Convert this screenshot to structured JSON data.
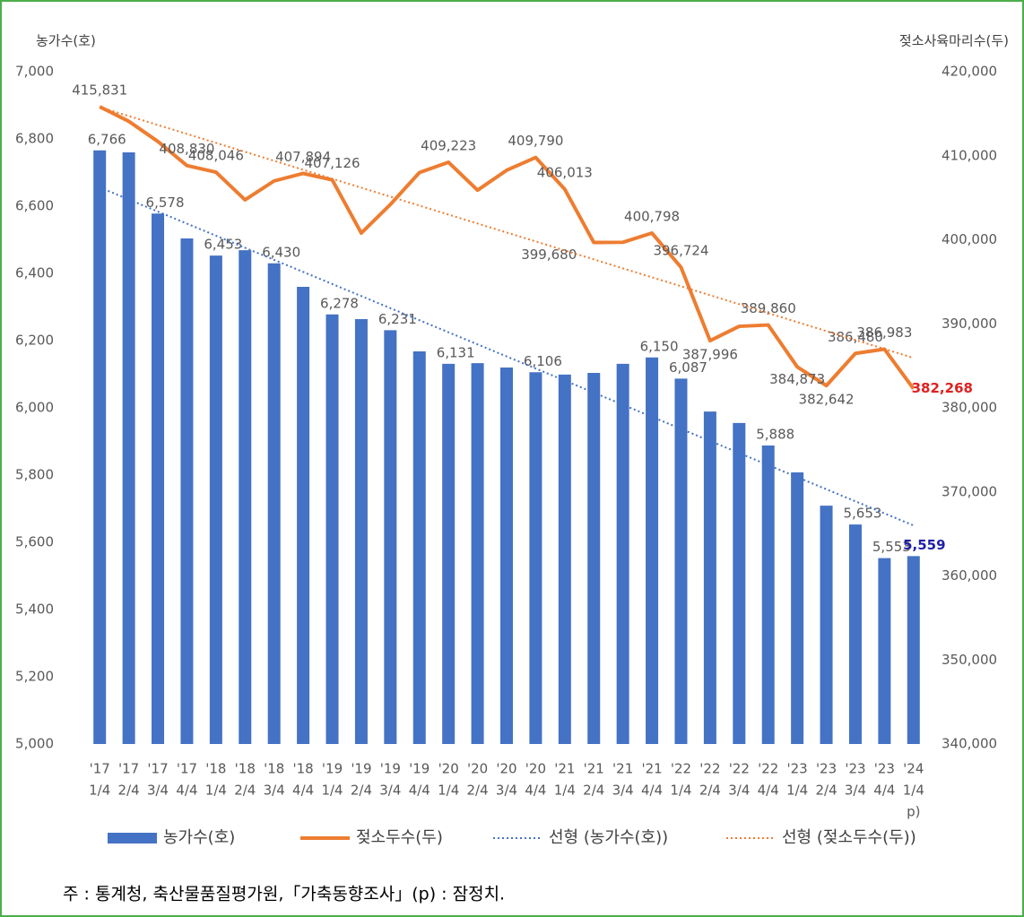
{
  "chart_data": {
    "type": "bar-line",
    "y_title": "농가수(호)",
    "y2_title": "젖소사육마리수(두)",
    "categories": [
      [
        "'17",
        "1/4"
      ],
      [
        "'17",
        "2/4"
      ],
      [
        "'17",
        "3/4"
      ],
      [
        "'17",
        "4/4"
      ],
      [
        "'18",
        "1/4"
      ],
      [
        "'18",
        "2/4"
      ],
      [
        "'18",
        "3/4"
      ],
      [
        "'18",
        "4/4"
      ],
      [
        "'19",
        "1/4"
      ],
      [
        "'19",
        "2/4"
      ],
      [
        "'19",
        "3/4"
      ],
      [
        "'19",
        "4/4"
      ],
      [
        "'20",
        "1/4"
      ],
      [
        "'20",
        "2/4"
      ],
      [
        "'20",
        "3/4"
      ],
      [
        "'20",
        "4/4"
      ],
      [
        "'21",
        "1/4"
      ],
      [
        "'21",
        "2/4"
      ],
      [
        "'21",
        "3/4"
      ],
      [
        "'21",
        "4/4"
      ],
      [
        "'22",
        "1/4"
      ],
      [
        "'22",
        "2/4"
      ],
      [
        "'22",
        "3/4"
      ],
      [
        "'22",
        "4/4"
      ],
      [
        "'23",
        "1/4"
      ],
      [
        "'23",
        "2/4"
      ],
      [
        "'23",
        "3/4"
      ],
      [
        "'23",
        "4/4"
      ],
      [
        "'24",
        "1/4",
        "p)"
      ]
    ],
    "series": [
      {
        "name": "농가수(호)",
        "type": "bar",
        "color": "#4472c4",
        "highlight_color": "#1f1fa8",
        "values": [
          6766,
          6760,
          6578,
          6504,
          6453,
          6469,
          6430,
          6360,
          6278,
          6264,
          6231,
          6168,
          6131,
          6133,
          6120,
          6106,
          6099,
          6104,
          6131,
          6150,
          6087,
          5989,
          5955,
          5888,
          5808,
          5709,
          5653,
          5553,
          5559
        ],
        "value_labels": [
          "6,766",
          null,
          "6,578",
          null,
          "6,453",
          null,
          "6,430",
          null,
          "6,278",
          null,
          "6,231",
          null,
          "6,131",
          null,
          null,
          "6,106",
          null,
          null,
          null,
          "6,150",
          "6,087",
          null,
          null,
          "5,888",
          null,
          null,
          "5,653",
          "5,553",
          "5,559"
        ],
        "trendline": {
          "name": "선형 (농가수(호))",
          "color": "#4472c4"
        }
      },
      {
        "name": "젖소두수(두)",
        "type": "line",
        "axis": "y2",
        "color": "#ed7d31",
        "highlight_color": "#e02020",
        "values": [
          415831,
          414100,
          411700,
          408830,
          408046,
          404750,
          407000,
          407894,
          407126,
          400800,
          404200,
          408000,
          409223,
          405900,
          408270,
          409790,
          406013,
          399680,
          399700,
          400798,
          396724,
          387996,
          389700,
          389860,
          384873,
          382642,
          386480,
          386983,
          382268
        ],
        "value_labels": [
          "415,831",
          null,
          null,
          "408,830",
          "408,046",
          null,
          null,
          "407,894",
          "407,126",
          null,
          null,
          null,
          "409,223",
          null,
          null,
          "409,790",
          "406,013",
          "399,680",
          null,
          "400,798",
          "396,724",
          "387,996",
          null,
          "389,860",
          "384,873",
          "382,642",
          "386,480",
          "386,983",
          "382,268"
        ],
        "trendline": {
          "name": "선형 (젖소두수(두))",
          "color": "#ed7d31"
        }
      }
    ],
    "ylim": [
      5000,
      7000
    ],
    "yticks": [
      {
        "value": 5000,
        "label": "5,000"
      },
      {
        "value": 5200,
        "label": "5,200"
      },
      {
        "value": 5400,
        "label": "5,400"
      },
      {
        "value": 5600,
        "label": "5,600"
      },
      {
        "value": 5800,
        "label": "5,800"
      },
      {
        "value": 6000,
        "label": "6,000"
      },
      {
        "value": 6200,
        "label": "6,200"
      },
      {
        "value": 6400,
        "label": "6,400"
      },
      {
        "value": 6600,
        "label": "6,600"
      },
      {
        "value": 6800,
        "label": "6,800"
      },
      {
        "value": 7000,
        "label": "7,000"
      }
    ],
    "y2lim": [
      340000,
      420000
    ],
    "y2ticks": [
      {
        "value": 340000,
        "label": "340,000"
      },
      {
        "value": 350000,
        "label": "350,000"
      },
      {
        "value": 360000,
        "label": "360,000"
      },
      {
        "value": 370000,
        "label": "370,000"
      },
      {
        "value": 380000,
        "label": "380,000"
      },
      {
        "value": 390000,
        "label": "390,000"
      },
      {
        "value": 400000,
        "label": "400,000"
      },
      {
        "value": 410000,
        "label": "410,000"
      },
      {
        "value": 420000,
        "label": "420,000"
      }
    ],
    "note": "주 : 통계청, 축산물품질평가원,「가축동향조사」(p) : 잠정치."
  }
}
